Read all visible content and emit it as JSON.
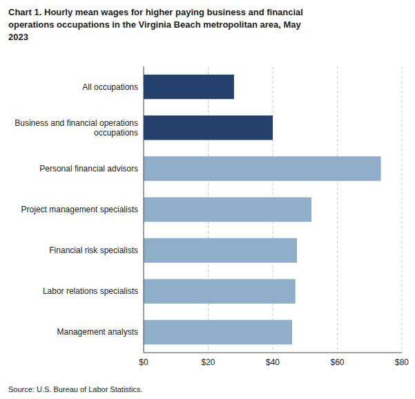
{
  "chart_data": {
    "type": "bar",
    "orientation": "horizontal",
    "title": "Chart 1. Hourly mean wages for higher paying business and financial\noperations occupations in the Virginia Beach metropolitan area, May\n2023",
    "categories": [
      "Management analysts",
      "Labor relations specialists",
      "Financial risk specialists",
      "Project management specialists",
      "Personal financial advisors",
      "Business and financial operations\noccupations",
      "All occupations"
    ],
    "values": [
      46.0,
      47.0,
      47.5,
      52.0,
      73.5,
      40.0,
      28.0
    ],
    "colors": [
      "#8eaeca",
      "#8eaeca",
      "#8eaeca",
      "#8eaeca",
      "#8eaeca",
      "#25426e",
      "#25426e"
    ],
    "xlim": [
      0,
      80
    ],
    "xticks": [
      {
        "value": 0,
        "label": "$0"
      },
      {
        "value": 20,
        "label": "$20"
      },
      {
        "value": 40,
        "label": "$40"
      },
      {
        "value": 60,
        "label": "$60"
      },
      {
        "value": 80,
        "label": "$80"
      }
    ],
    "grid": true,
    "source": "Source: U.S. Bureau of Labor Statistics."
  }
}
